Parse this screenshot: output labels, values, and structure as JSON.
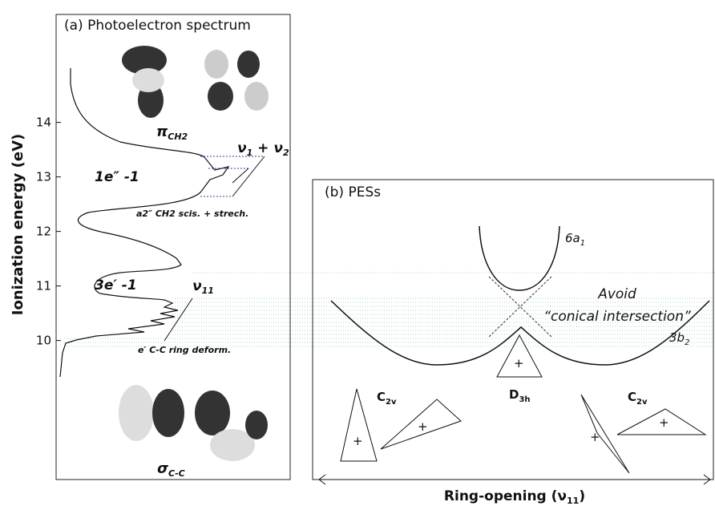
{
  "panel_a": {
    "title": "(a) Photoelectron spectrum",
    "y_label": "Ionization energy  (eV)",
    "ylim": [
      7.45,
      15.98
    ],
    "yticks": [
      10,
      11,
      12,
      13,
      14
    ],
    "pi_label": {
      "main": "π",
      "sub": "CH2"
    },
    "band_1": "1e″ -1",
    "band_1_mode": {
      "a": "ν",
      "a_sub": "1",
      "plus": " + ",
      "b": "ν",
      "b_sub": "2"
    },
    "band_1_note": "a2″ CH2 scis. + strech.",
    "band_2": "3e′ -1",
    "band_2_mode": {
      "main": "ν",
      "sub": "11"
    },
    "band_2_note": "e′  C-C ring deform.",
    "sigma_label": {
      "main": "σ",
      "sub": "C-C"
    }
  },
  "panel_b": {
    "title": "(b) PESs",
    "upper_state": {
      "main": "6a",
      "sub": "1"
    },
    "lower_state": {
      "main": "3b",
      "sub": "2"
    },
    "note_1": "Avoid",
    "note_2": "“conical intersection”",
    "left_symmetry": {
      "main": "C",
      "sub": "2v"
    },
    "center_symmetry": {
      "main": "D",
      "sub": "3h"
    },
    "right_symmetry": {
      "main": "C",
      "sub": "2v"
    },
    "x_label": {
      "main": "Ring-opening (ν",
      "sub": "11",
      "end": ")"
    }
  }
}
